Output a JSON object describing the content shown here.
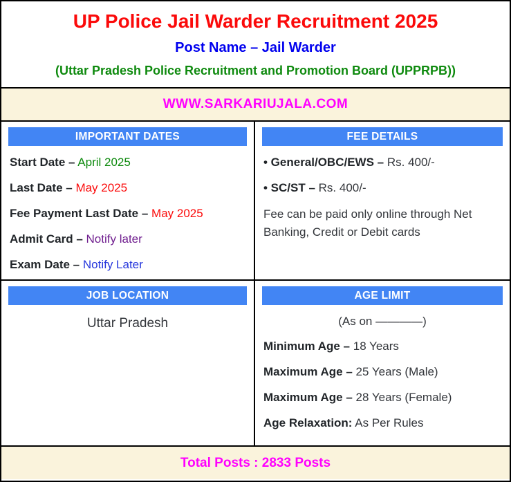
{
  "header": {
    "title": "UP Police Jail Warder Recruitment 2025",
    "post_name": "Post Name – Jail Warder",
    "board": "(Uttar Pradesh Police Recruitment and Promotion Board (UPPRPB))"
  },
  "website_banner": {
    "text": "WWW.SARKARIUJALA.COM"
  },
  "sections": {
    "important_dates": {
      "heading": "IMPORTANT DATES",
      "items": [
        {
          "label": "Start Date –",
          "value": "April 2025",
          "color": "#0e8a0e"
        },
        {
          "label": "Last Date –",
          "value": "May 2025",
          "color": "#fb0a0a"
        },
        {
          "label": "Fee Payment Last Date –",
          "value": "May 2025",
          "color": "#fb0a0a"
        },
        {
          "label": "Admit Card –",
          "value": "Notify later",
          "color": "#6f1d8e"
        },
        {
          "label": "Exam Date –",
          "value": "Notify Later",
          "color": "#2536dc"
        }
      ]
    },
    "fee_details": {
      "heading": "FEE DETAILS",
      "items": [
        {
          "label": "• General/OBC/EWS –",
          "value": "Rs. 400/-"
        },
        {
          "label": "• SC/ST –",
          "value": "Rs. 400/-"
        }
      ],
      "note": "Fee can be paid only online through Net Banking, Credit or Debit cards"
    },
    "job_location": {
      "heading": "JOB LOCATION",
      "value": "Uttar Pradesh"
    },
    "age_limit": {
      "heading": "AGE LIMIT",
      "as_on": "(As on ————)",
      "items": [
        {
          "label": "Minimum Age –",
          "value": "18 Years"
        },
        {
          "label": "Maximum Age –",
          "value": "25 Years (Male)"
        },
        {
          "label": "Maximum Age –",
          "value": "28 Years (Female)"
        },
        {
          "label": "Age Relaxation:",
          "value": "As Per Rules"
        }
      ]
    }
  },
  "footer": {
    "total_posts": "Total Posts : 2833 Posts"
  },
  "colors": {
    "accent_bar_blue": "#4285f4",
    "banner_cream": "#faf3dc",
    "brand_magenta": "#ff00ff",
    "title_red": "#fb0a0a",
    "post_blue": "#0000ee",
    "board_green": "#0e8a0e",
    "text_dark": "#212529",
    "border_black": "#000000"
  }
}
